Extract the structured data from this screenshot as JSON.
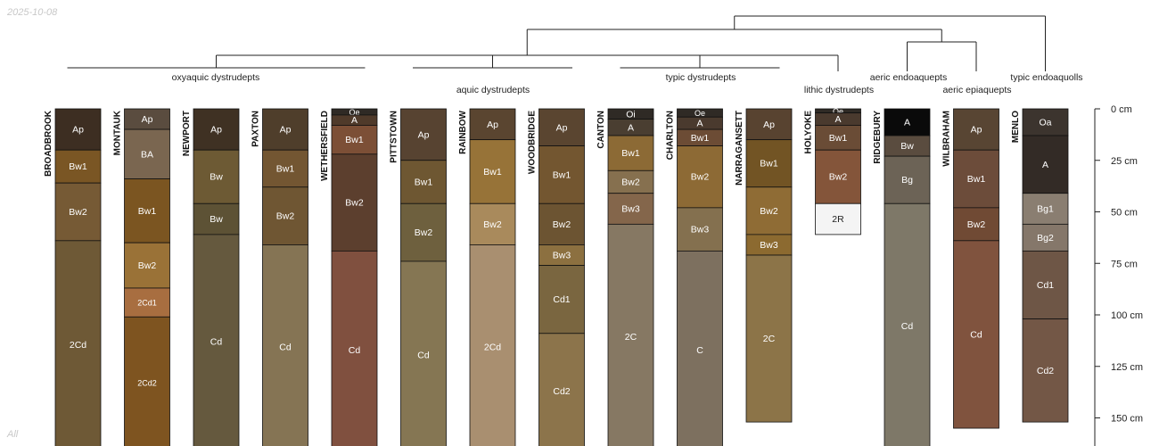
{
  "corner_date": "2025-10-08",
  "corner_filter": "All",
  "depth_axis": {
    "unit": "cm",
    "ticks": [
      {
        "depth": 0,
        "label": "0 cm"
      },
      {
        "depth": 25,
        "label": "25 cm"
      },
      {
        "depth": 50,
        "label": "50 cm"
      },
      {
        "depth": 75,
        "label": "75 cm"
      },
      {
        "depth": 100,
        "label": "100 cm"
      },
      {
        "depth": 125,
        "label": "125 cm"
      },
      {
        "depth": 150,
        "label": "150 cm"
      }
    ]
  },
  "groups": [
    {
      "label": "oxyaquic dystrudepts",
      "from": 0,
      "to": 4
    },
    {
      "label": "aquic dystrudepts",
      "from": 5,
      "to": 7
    },
    {
      "label": "typic dystrudepts",
      "from": 8,
      "to": 10
    },
    {
      "label": "lithic dystrudepts",
      "from": 11,
      "to": 11
    },
    {
      "label": "aeric endoaquepts",
      "from": 12,
      "to": 12
    },
    {
      "label": "aeric epiaquepts",
      "from": 13,
      "to": 13
    },
    {
      "label": "typic endoaquolls",
      "from": 14,
      "to": 14
    }
  ],
  "profiles": [
    {
      "name": "BROADBROOK",
      "horizons": [
        {
          "name": "Ap",
          "top": 0,
          "bottom": 20,
          "color": "#3d2e22"
        },
        {
          "name": "Bw1",
          "top": 20,
          "bottom": 36,
          "color": "#7a5624"
        },
        {
          "name": "Bw2",
          "top": 36,
          "bottom": 64,
          "color": "#765a35"
        },
        {
          "name": "2Cd",
          "top": 64,
          "bottom": 165,
          "color": "#6e5936"
        }
      ]
    },
    {
      "name": "MONTAUK",
      "horizons": [
        {
          "name": "Ap",
          "top": 0,
          "bottom": 10,
          "color": "#5a4c3f"
        },
        {
          "name": "BA",
          "top": 10,
          "bottom": 34,
          "color": "#7a6650"
        },
        {
          "name": "Bw1",
          "top": 34,
          "bottom": 65,
          "color": "#7b5521"
        },
        {
          "name": "Bw2",
          "top": 65,
          "bottom": 87,
          "color": "#9a7237"
        },
        {
          "name": "2Cd1",
          "top": 87,
          "bottom": 101,
          "color": "#a86e40"
        },
        {
          "name": "2Cd2",
          "top": 101,
          "bottom": 165,
          "color": "#7e5420"
        }
      ]
    },
    {
      "name": "NEWPORT",
      "horizons": [
        {
          "name": "Ap",
          "top": 0,
          "bottom": 20,
          "color": "#3f3123"
        },
        {
          "name": "Bw",
          "top": 20,
          "bottom": 46,
          "color": "#6d5a34"
        },
        {
          "name": "Bw",
          "top": 46,
          "bottom": 61,
          "color": "#5d5235"
        },
        {
          "name": "Cd",
          "top": 61,
          "bottom": 165,
          "color": "#65593e"
        }
      ]
    },
    {
      "name": "PAXTON",
      "horizons": [
        {
          "name": "Ap",
          "top": 0,
          "bottom": 20,
          "color": "#4f3e2b"
        },
        {
          "name": "Bw1",
          "top": 20,
          "bottom": 38,
          "color": "#735632"
        },
        {
          "name": "Bw2",
          "top": 38,
          "bottom": 66,
          "color": "#6f5633"
        },
        {
          "name": "Cd",
          "top": 66,
          "bottom": 165,
          "color": "#857454"
        }
      ]
    },
    {
      "name": "WETHERSFIELD",
      "horizons": [
        {
          "name": "Oe",
          "top": 0,
          "bottom": 3,
          "color": "#2f2a25"
        },
        {
          "name": "A",
          "top": 3,
          "bottom": 8,
          "color": "#4f3a2a"
        },
        {
          "name": "Bw1",
          "top": 8,
          "bottom": 22,
          "color": "#7c4f36"
        },
        {
          "name": "Bw2",
          "top": 22,
          "bottom": 69,
          "color": "#5c3f2e"
        },
        {
          "name": "Cd",
          "top": 69,
          "bottom": 165,
          "color": "#80503f"
        }
      ]
    },
    {
      "name": "PITTSTOWN",
      "horizons": [
        {
          "name": "Ap",
          "top": 0,
          "bottom": 25,
          "color": "#574331"
        },
        {
          "name": "Bw1",
          "top": 25,
          "bottom": 46,
          "color": "#6e5732"
        },
        {
          "name": "Bw2",
          "top": 46,
          "bottom": 74,
          "color": "#6e603e"
        },
        {
          "name": "Cd",
          "top": 74,
          "bottom": 165,
          "color": "#857653"
        }
      ]
    },
    {
      "name": "RAINBOW",
      "horizons": [
        {
          "name": "Ap",
          "top": 0,
          "bottom": 15,
          "color": "#5a4530"
        },
        {
          "name": "Bw1",
          "top": 15,
          "bottom": 46,
          "color": "#977338"
        },
        {
          "name": "Bw2",
          "top": 46,
          "bottom": 66,
          "color": "#a98a5c"
        },
        {
          "name": "2Cd",
          "top": 66,
          "bottom": 165,
          "color": "#a98f70"
        }
      ]
    },
    {
      "name": "WOODBRIDGE",
      "horizons": [
        {
          "name": "Ap",
          "top": 0,
          "bottom": 18,
          "color": "#5a4530"
        },
        {
          "name": "Bw1",
          "top": 18,
          "bottom": 46,
          "color": "#735630"
        },
        {
          "name": "Bw2",
          "top": 46,
          "bottom": 66,
          "color": "#6c5432"
        },
        {
          "name": "Bw3",
          "top": 66,
          "bottom": 76,
          "color": "#8c7040"
        },
        {
          "name": "Cd1",
          "top": 76,
          "bottom": 109,
          "color": "#7a6640"
        },
        {
          "name": "Cd2",
          "top": 109,
          "bottom": 165,
          "color": "#8c744b"
        }
      ]
    },
    {
      "name": "CANTON",
      "horizons": [
        {
          "name": "Oi",
          "top": 0,
          "bottom": 5,
          "color": "#2f2a25"
        },
        {
          "name": "A",
          "top": 5,
          "bottom": 13,
          "color": "#4a3e31"
        },
        {
          "name": "Bw1",
          "top": 13,
          "bottom": 30,
          "color": "#8c6a35"
        },
        {
          "name": "Bw2",
          "top": 30,
          "bottom": 41,
          "color": "#86704f"
        },
        {
          "name": "Bw3",
          "top": 41,
          "bottom": 56,
          "color": "#84664b"
        },
        {
          "name": "2C",
          "top": 56,
          "bottom": 165,
          "color": "#867863"
        }
      ]
    },
    {
      "name": "CHARLTON",
      "horizons": [
        {
          "name": "Oe",
          "top": 0,
          "bottom": 4,
          "color": "#2f2a25"
        },
        {
          "name": "A",
          "top": 4,
          "bottom": 10,
          "color": "#4a3a2e"
        },
        {
          "name": "Bw1",
          "top": 10,
          "bottom": 18,
          "color": "#6c4c35"
        },
        {
          "name": "Bw2",
          "top": 18,
          "bottom": 48,
          "color": "#8d6a35"
        },
        {
          "name": "Bw3",
          "top": 48,
          "bottom": 69,
          "color": "#84704f"
        },
        {
          "name": "C",
          "top": 69,
          "bottom": 165,
          "color": "#7d705f"
        }
      ]
    },
    {
      "name": "NARRAGANSETT",
      "horizons": [
        {
          "name": "Ap",
          "top": 0,
          "bottom": 15,
          "color": "#584330"
        },
        {
          "name": "Bw1",
          "top": 15,
          "bottom": 38,
          "color": "#725424"
        },
        {
          "name": "Bw2",
          "top": 38,
          "bottom": 61,
          "color": "#8f6c35"
        },
        {
          "name": "Bw3",
          "top": 61,
          "bottom": 71,
          "color": "#8c6a30"
        },
        {
          "name": "2C",
          "top": 71,
          "bottom": 152,
          "color": "#8c7448"
        }
      ]
    },
    {
      "name": "HOLYOKE",
      "horizons": [
        {
          "name": "Oe",
          "top": 0,
          "bottom": 2,
          "color": "#2f2a25"
        },
        {
          "name": "A",
          "top": 2,
          "bottom": 8,
          "color": "#4a3a2e"
        },
        {
          "name": "Bw1",
          "top": 8,
          "bottom": 20,
          "color": "#6a4c36"
        },
        {
          "name": "Bw2",
          "top": 20,
          "bottom": 46,
          "color": "#84553a"
        },
        {
          "name": "2R",
          "top": 46,
          "bottom": 61,
          "color": "#f4f4f4"
        }
      ]
    },
    {
      "name": "RIDGEBURY",
      "horizons": [
        {
          "name": "A",
          "top": 0,
          "bottom": 13,
          "color": "#0a0a0a"
        },
        {
          "name": "Bw",
          "top": 13,
          "bottom": 23,
          "color": "#5a4c3f"
        },
        {
          "name": "Bg",
          "top": 23,
          "bottom": 46,
          "color": "#6c6356"
        },
        {
          "name": "Cd",
          "top": 46,
          "bottom": 165,
          "color": "#7e7868"
        }
      ]
    },
    {
      "name": "WILBRAHAM",
      "horizons": [
        {
          "name": "Ap",
          "top": 0,
          "bottom": 20,
          "color": "#584533"
        },
        {
          "name": "Bw1",
          "top": 20,
          "bottom": 48,
          "color": "#6c4c3a"
        },
        {
          "name": "Bw2",
          "top": 48,
          "bottom": 64,
          "color": "#704a34"
        },
        {
          "name": "Cd",
          "top": 64,
          "bottom": 155,
          "color": "#80533e"
        }
      ]
    },
    {
      "name": "MENLO",
      "horizons": [
        {
          "name": "Oa",
          "top": 0,
          "bottom": 13,
          "color": "#3c342e"
        },
        {
          "name": "A",
          "top": 13,
          "bottom": 41,
          "color": "#332b26"
        },
        {
          "name": "Bg1",
          "top": 41,
          "bottom": 56,
          "color": "#8a7e71"
        },
        {
          "name": "Bg2",
          "top": 56,
          "bottom": 69,
          "color": "#85776a"
        },
        {
          "name": "Cd1",
          "top": 69,
          "bottom": 102,
          "color": "#6e5646"
        },
        {
          "name": "Cd2",
          "top": 102,
          "bottom": 152,
          "color": "#735746"
        }
      ]
    }
  ]
}
